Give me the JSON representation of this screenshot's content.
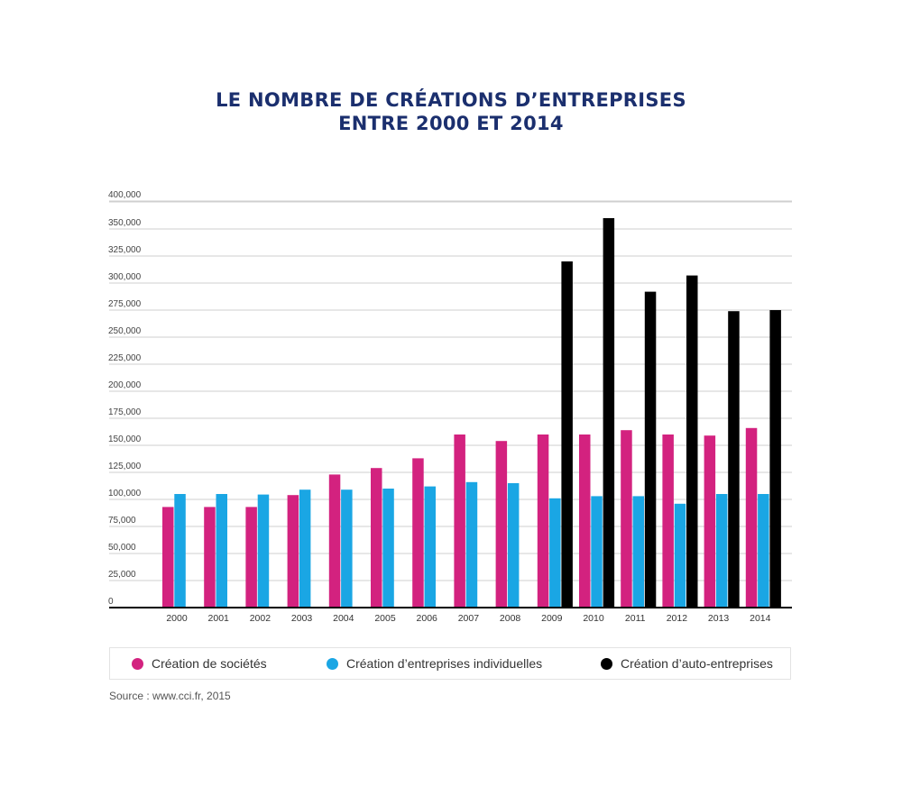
{
  "title_line1": "LE NOMBRE DE CRÉATIONS D’ENTREPRISES",
  "title_line2": "ENTRE 2000 ET 2014",
  "source": "Source : www.cci.fr, 2015",
  "colors": {
    "societes": "#d3227f",
    "individuelles": "#1aa6e4",
    "auto": "#000000"
  },
  "chart_data": {
    "type": "bar",
    "categories": [
      "2000",
      "2001",
      "2002",
      "2003",
      "2004",
      "2005",
      "2006",
      "2007",
      "2008",
      "2009",
      "2010",
      "2011",
      "2012",
      "2013",
      "2014"
    ],
    "series": [
      {
        "name": "Création de sociétés",
        "key": "societes",
        "values": [
          93000,
          93000,
          93000,
          104000,
          123000,
          129000,
          138000,
          160000,
          154000,
          160000,
          160000,
          164000,
          160000,
          159000,
          166000
        ]
      },
      {
        "name": "Création d’entreprises individuelles",
        "key": "individuelles",
        "values": [
          105000,
          105000,
          104500,
          109000,
          109000,
          110000,
          112000,
          116000,
          115000,
          101000,
          103000,
          103000,
          96000,
          105000,
          105000
        ]
      },
      {
        "name": "Création d’auto-entreprises",
        "key": "auto",
        "values": [
          null,
          null,
          null,
          null,
          null,
          null,
          null,
          null,
          null,
          320000,
          360000,
          292000,
          307000,
          274000,
          275000
        ]
      }
    ],
    "yticks": [
      "0",
      "25,000",
      "50,000",
      "75,000",
      "100,000",
      "125,000",
      "150,000",
      "175,000",
      "200,000",
      "225,000",
      "250,000",
      "275,000",
      "300,000",
      "325,000",
      "350,000",
      "400,000"
    ],
    "ylim": [
      0,
      375000
    ],
    "grid": true,
    "legend": "bottom"
  }
}
